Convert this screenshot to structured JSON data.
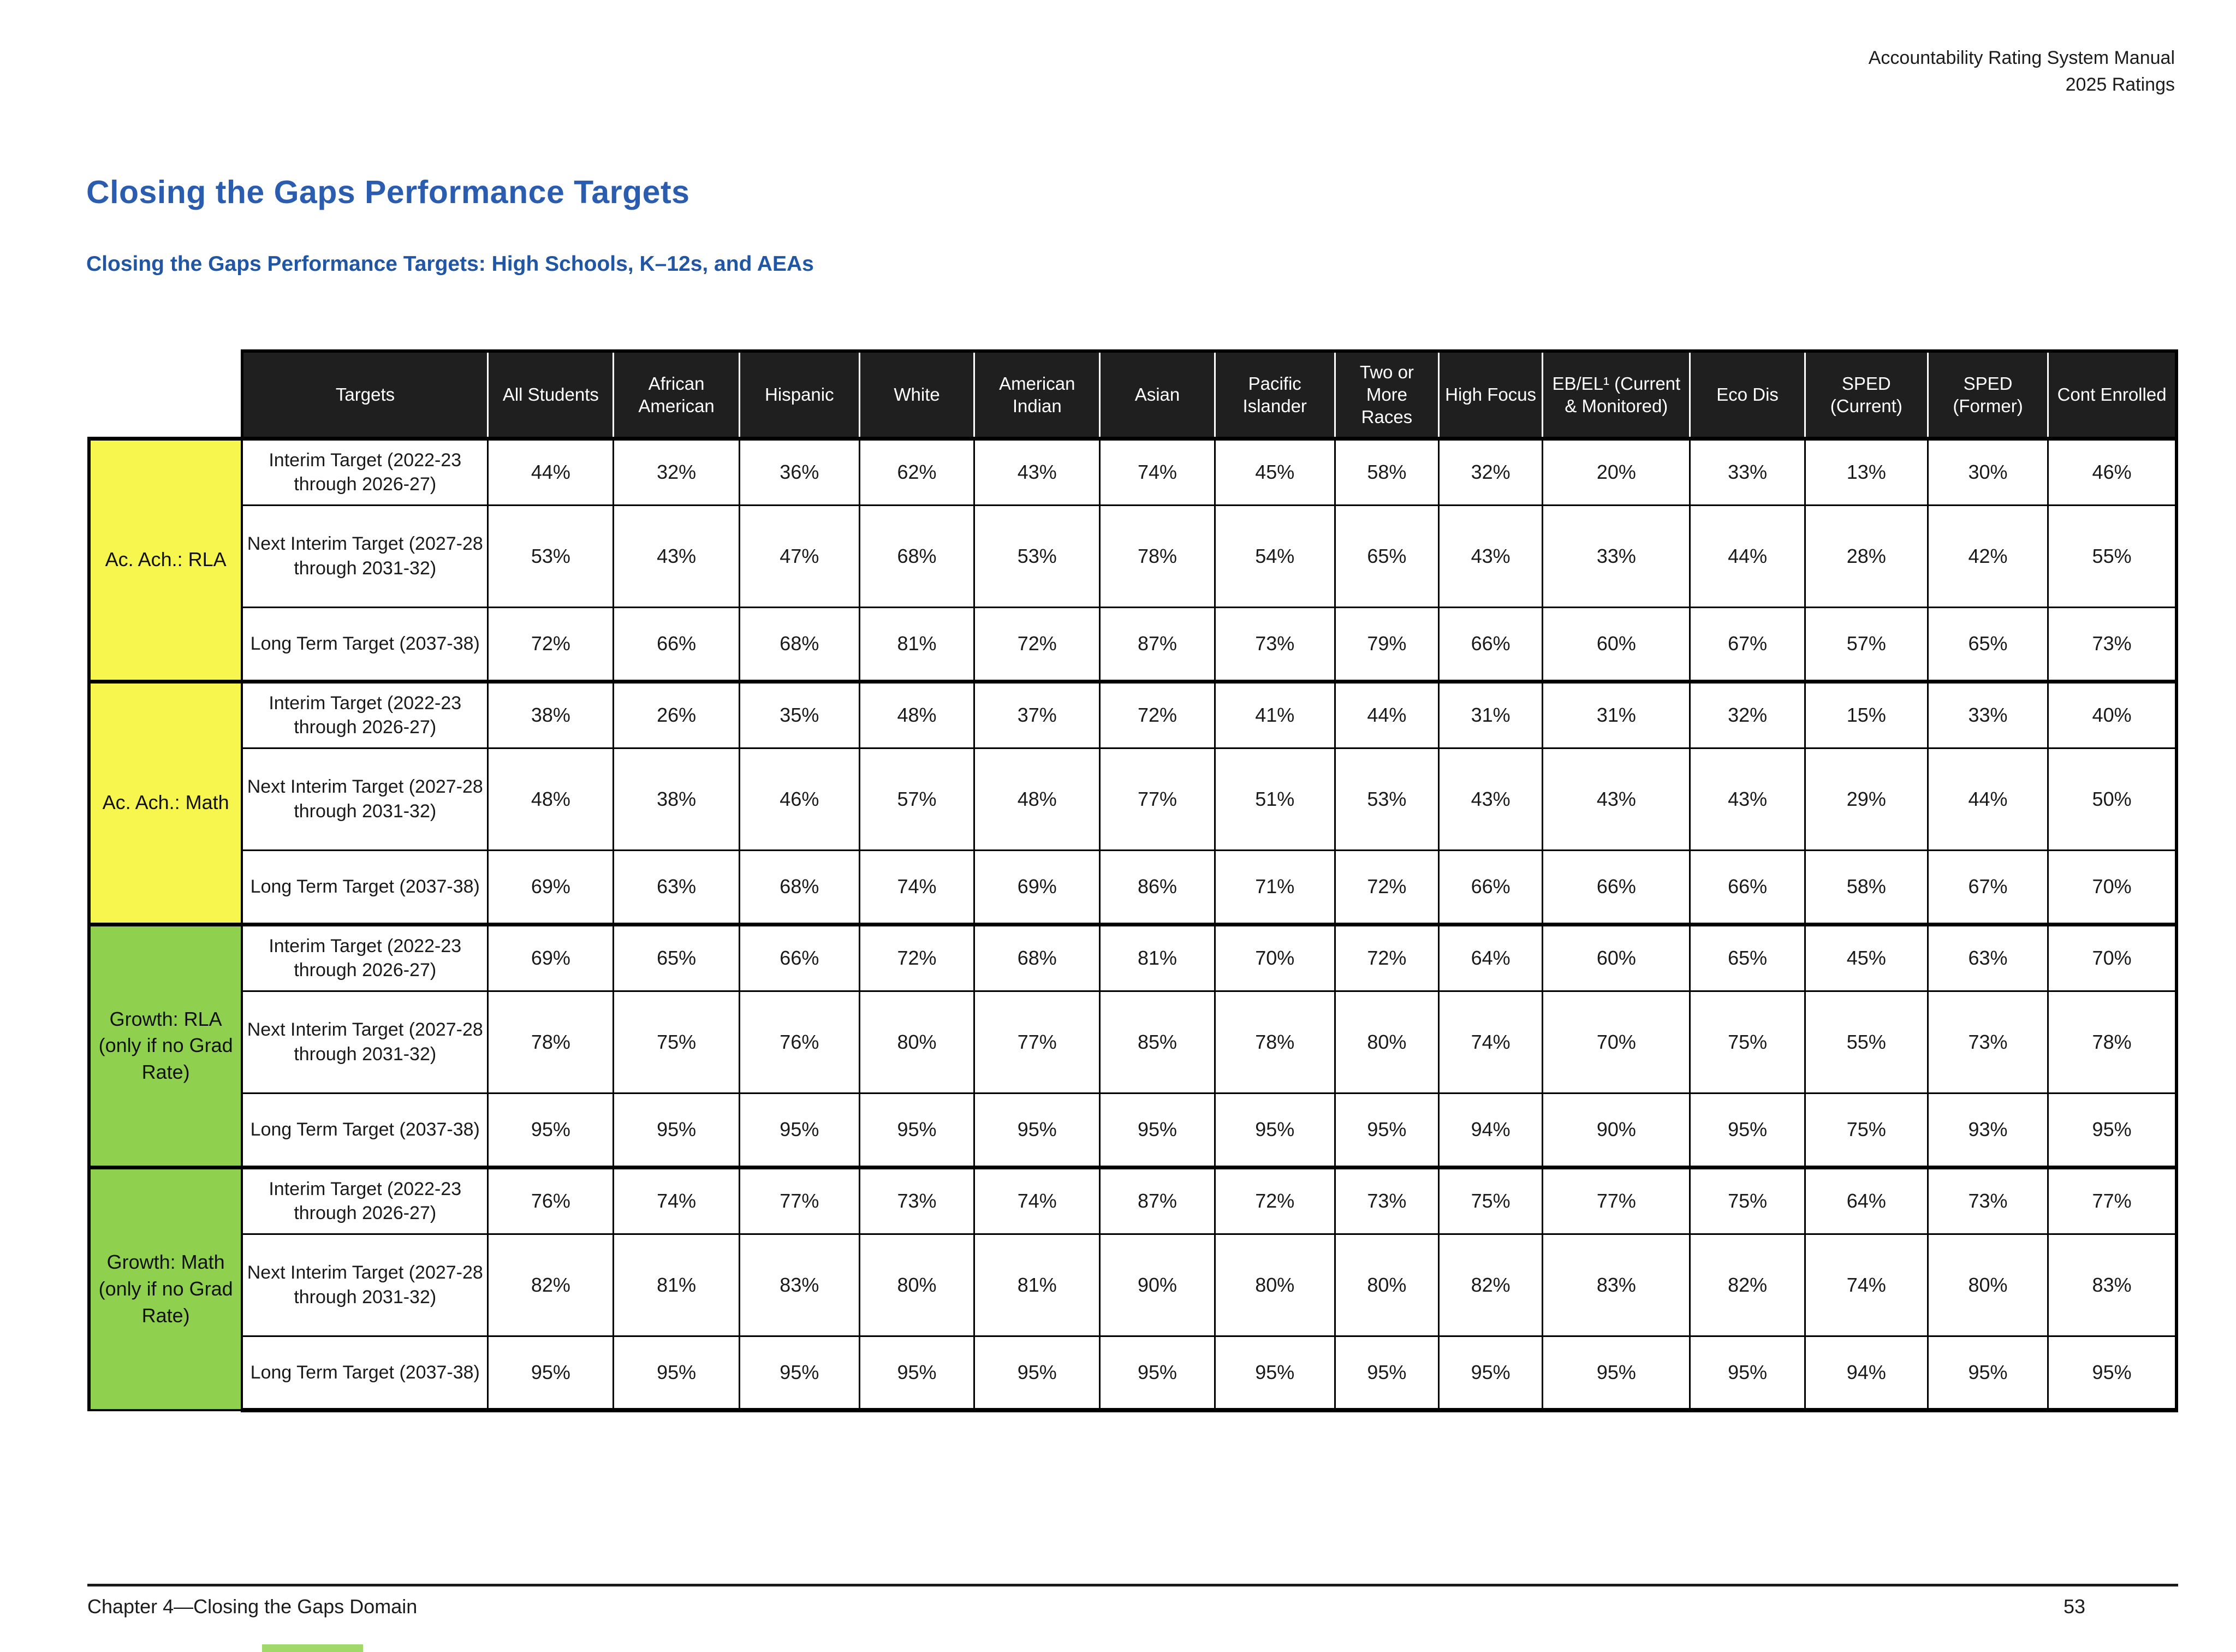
{
  "page": {
    "header_right_line1": "Accountability Rating System Manual",
    "header_right_line2": "2025 Ratings",
    "title": "Closing the Gaps Performance Targets",
    "subtitle": "Closing the Gaps Performance Targets: High Schools, K–12s, and AEAs",
    "footer_left": "Chapter 4—Closing the Gaps Domain",
    "page_number": "53"
  },
  "colors": {
    "title_blue": "#2A5CB0",
    "subtitle_blue": "#2156A5",
    "header_bg": "#1F1F1F",
    "header_text": "#FFFFFF",
    "yellow_group": "#F7F64F",
    "green_group": "#8FD14F"
  },
  "table": {
    "stub_header": "",
    "columns": [
      "Targets",
      "All Students",
      "African American",
      "Hispanic",
      "White",
      "American Indian",
      "Asian",
      "Pacific Islander",
      "Two or More Races",
      "High Focus",
      "EB/EL¹ (Current & Monitored)",
      "Eco Dis",
      "SPED (Current)",
      "SPED (Former)",
      "Cont Enrolled"
    ],
    "groups": [
      {
        "name": "Ac. Ach.: RLA",
        "color": "yellow",
        "rows": [
          {
            "target": "Interim Target (2022-23 through 2026-27)",
            "values": [
              "44%",
              "32%",
              "36%",
              "62%",
              "43%",
              "74%",
              "45%",
              "58%",
              "32%",
              "20%",
              "33%",
              "13%",
              "30%",
              "46%"
            ]
          },
          {
            "target": "Next Interim Target (2027-28 through 2031-32)",
            "values": [
              "53%",
              "43%",
              "47%",
              "68%",
              "53%",
              "78%",
              "54%",
              "65%",
              "43%",
              "33%",
              "44%",
              "28%",
              "42%",
              "55%"
            ]
          },
          {
            "target": "Long Term Target (2037-38)",
            "values": [
              "72%",
              "66%",
              "68%",
              "81%",
              "72%",
              "87%",
              "73%",
              "79%",
              "66%",
              "60%",
              "67%",
              "57%",
              "65%",
              "73%"
            ]
          }
        ]
      },
      {
        "name": "Ac. Ach.: Math",
        "color": "yellow",
        "rows": [
          {
            "target": "Interim Target (2022-23 through 2026-27)",
            "values": [
              "38%",
              "26%",
              "35%",
              "48%",
              "37%",
              "72%",
              "41%",
              "44%",
              "31%",
              "31%",
              "32%",
              "15%",
              "33%",
              "40%"
            ]
          },
          {
            "target": "Next Interim Target (2027-28 through 2031-32)",
            "values": [
              "48%",
              "38%",
              "46%",
              "57%",
              "48%",
              "77%",
              "51%",
              "53%",
              "43%",
              "43%",
              "43%",
              "29%",
              "44%",
              "50%"
            ]
          },
          {
            "target": "Long Term Target (2037-38)",
            "values": [
              "69%",
              "63%",
              "68%",
              "74%",
              "69%",
              "86%",
              "71%",
              "72%",
              "66%",
              "66%",
              "66%",
              "58%",
              "67%",
              "70%"
            ]
          }
        ]
      },
      {
        "name": "Growth: RLA (only if no Grad Rate)",
        "color": "green",
        "rows": [
          {
            "target": "Interim Target (2022-23 through 2026-27)",
            "values": [
              "69%",
              "65%",
              "66%",
              "72%",
              "68%",
              "81%",
              "70%",
              "72%",
              "64%",
              "60%",
              "65%",
              "45%",
              "63%",
              "70%"
            ]
          },
          {
            "target": "Next Interim Target (2027-28 through 2031-32)",
            "values": [
              "78%",
              "75%",
              "76%",
              "80%",
              "77%",
              "85%",
              "78%",
              "80%",
              "74%",
              "70%",
              "75%",
              "55%",
              "73%",
              "78%"
            ]
          },
          {
            "target": "Long Term Target (2037-38)",
            "values": [
              "95%",
              "95%",
              "95%",
              "95%",
              "95%",
              "95%",
              "95%",
              "95%",
              "94%",
              "90%",
              "95%",
              "75%",
              "93%",
              "95%"
            ]
          }
        ]
      },
      {
        "name": "Growth: Math (only if no Grad Rate)",
        "color": "green",
        "rows": [
          {
            "target": "Interim Target (2022-23 through 2026-27)",
            "values": [
              "76%",
              "74%",
              "77%",
              "73%",
              "74%",
              "87%",
              "72%",
              "73%",
              "75%",
              "77%",
              "75%",
              "64%",
              "73%",
              "77%"
            ]
          },
          {
            "target": "Next Interim Target (2027-28 through 2031-32)",
            "values": [
              "82%",
              "81%",
              "83%",
              "80%",
              "81%",
              "90%",
              "80%",
              "80%",
              "82%",
              "83%",
              "82%",
              "74%",
              "80%",
              "83%"
            ]
          },
          {
            "target": "Long Term Target (2037-38)",
            "values": [
              "95%",
              "95%",
              "95%",
              "95%",
              "95%",
              "95%",
              "95%",
              "95%",
              "95%",
              "95%",
              "95%",
              "94%",
              "95%",
              "95%"
            ]
          }
        ]
      }
    ]
  }
}
